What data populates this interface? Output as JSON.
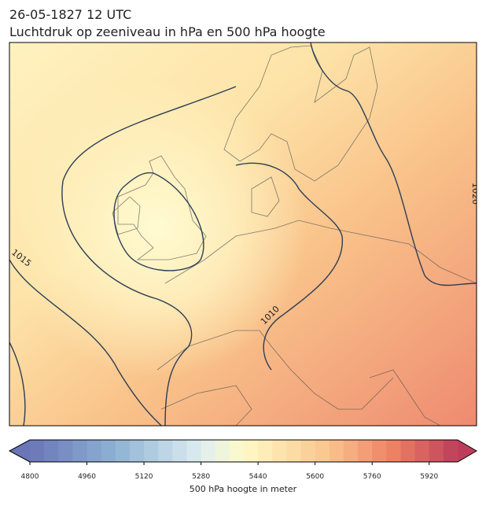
{
  "header": {
    "date": "26-05-1827 12 UTC",
    "subtitle": "Luchtdruk op zeeniveau in hPa en 500 hPa hoogte"
  },
  "map": {
    "contour_labels": [
      1015,
      1010,
      1020
    ]
  },
  "colorbar": {
    "label": "500 hPa hoogte in meter",
    "lim": [
      4800,
      6000
    ],
    "ticks": [
      4800,
      4960,
      5120,
      5280,
      5440,
      5600,
      5760,
      5920
    ]
  }
}
